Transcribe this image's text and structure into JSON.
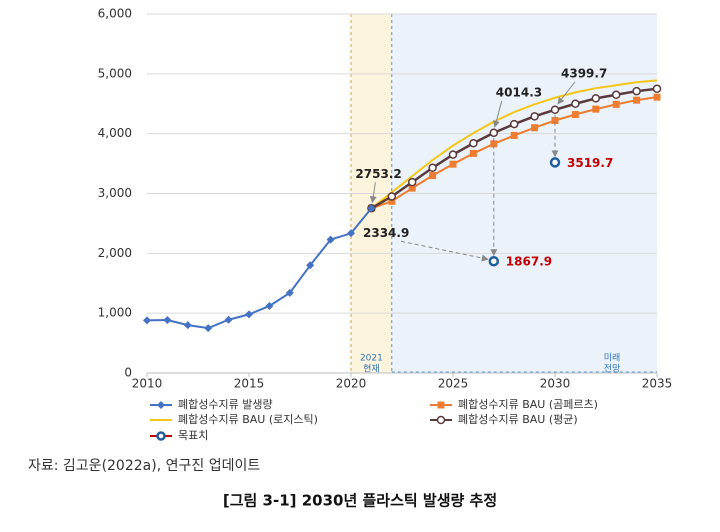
{
  "chart_data": {
    "type": "line",
    "xlim": [
      2010,
      2035
    ],
    "xticks": [
      2010,
      2015,
      2020,
      2025,
      2030,
      2035
    ],
    "ylim": [
      0,
      6000
    ],
    "yticks": [
      0,
      {
        "value": 1000,
        "label": "1,000"
      },
      {
        "value": 2000,
        "label": "2,000"
      },
      {
        "value": 3000,
        "label": "3,000"
      },
      {
        "value": 4000,
        "label": "4,000"
      },
      {
        "value": 5000,
        "label": "5,000"
      },
      {
        "value": 6000,
        "label": "6,000"
      }
    ],
    "grid": true,
    "spans": [
      {
        "from": 2020,
        "to": 2022,
        "color": "#fdf4de",
        "border": "#d9a441",
        "label": [
          "2021",
          "현재"
        ]
      },
      {
        "from": 2022,
        "to": 2035,
        "color": "#ecf2fa",
        "border": "#5b9bd5",
        "label": [
          "미래",
          "전망"
        ]
      }
    ],
    "series": [
      {
        "name": "폐합성수지류 발생량",
        "color": "#4472c4",
        "marker": "diamond",
        "x": [
          2010,
          2011,
          2012,
          2013,
          2014,
          2015,
          2016,
          2017,
          2018,
          2019,
          2020,
          2021
        ],
        "values": [
          880,
          885,
          800,
          750,
          890,
          980,
          1120,
          1340,
          1800,
          2230,
          2334.9,
          2753.2
        ]
      },
      {
        "name": "폐합성수지류 BAU (곰페르츠)",
        "color": "#ed7d31",
        "marker": "square",
        "x": [
          2021,
          2022,
          2023,
          2024,
          2025,
          2026,
          2027,
          2028,
          2029,
          2030,
          2031,
          2032,
          2033,
          2034,
          2035
        ],
        "values": [
          2753.2,
          2870,
          3090,
          3300,
          3490,
          3670,
          3830,
          3970,
          4100,
          4220,
          4320,
          4410,
          4490,
          4560,
          4610
        ]
      },
      {
        "name": "폐합성수지류 BAU (로지스틱)",
        "color": "#f5c518",
        "marker": "none",
        "x": [
          2021,
          2022,
          2023,
          2024,
          2025,
          2026,
          2027,
          2028,
          2029,
          2030,
          2031,
          2032,
          2033,
          2034,
          2035
        ],
        "values": [
          2753.2,
          3020,
          3290,
          3560,
          3800,
          4010,
          4200,
          4360,
          4490,
          4600,
          4690,
          4760,
          4810,
          4860,
          4890
        ]
      },
      {
        "name": "폐합성수지류 BAU (평균)",
        "color": "#5a3a3a",
        "marker": "circle",
        "x": [
          2021,
          2022,
          2023,
          2024,
          2025,
          2026,
          2027,
          2028,
          2029,
          2030,
          2031,
          2032,
          2033,
          2034,
          2035
        ],
        "values": [
          2753.2,
          2950,
          3190,
          3430,
          3650,
          3840,
          4014.3,
          4160,
          4290,
          4399.7,
          4500,
          4590,
          4650,
          4710,
          4750
        ]
      },
      {
        "name": "목표치",
        "color": "#c00000",
        "marker": "ring",
        "marker_color": "#1f5f9f",
        "line": false,
        "x": [
          2027,
          2030
        ],
        "values": [
          1867.9,
          3519.7
        ]
      }
    ],
    "source": "자료: 김고운(2022a), 연구진 업데이트",
    "caption": "[그림 3-1] 2030년 플라스틱 발생량 추정"
  }
}
